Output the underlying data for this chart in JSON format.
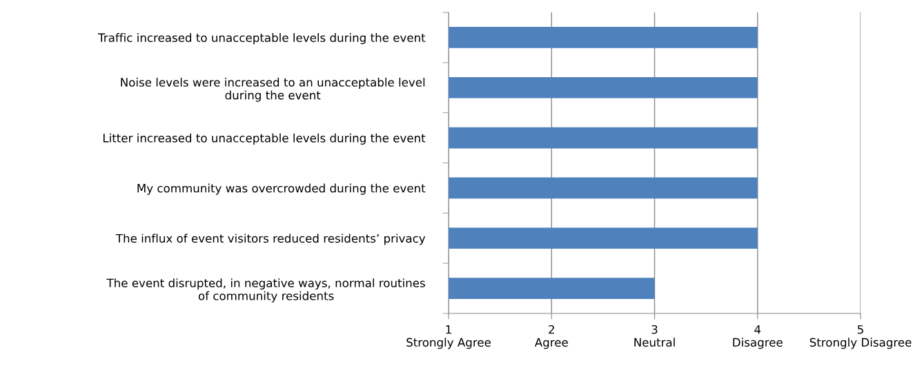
{
  "chart_data": {
    "type": "bar",
    "orientation": "horizontal",
    "categories": [
      "Traffic increased to unacceptable levels during the event",
      "Noise levels were increased to an unacceptable level\nduring the event",
      "Litter increased to unacceptable levels during the event",
      "My community was overcrowded during the event",
      "The influx of event visitors reduced residents’ privacy",
      "The event disrupted, in negative ways, normal routines\nof community residents"
    ],
    "values": [
      4,
      4,
      4,
      4,
      4,
      3
    ],
    "color": "#4f81bd",
    "xlim": [
      1,
      5
    ],
    "xticks": [
      {
        "value": 1,
        "label": "1\nStrongly Agree"
      },
      {
        "value": 2,
        "label": "2\nAgree"
      },
      {
        "value": 3,
        "label": "3\nNeutral"
      },
      {
        "value": 4,
        "label": "4\nDisagree"
      },
      {
        "value": 5,
        "label": "5\nStrongly Disagree"
      }
    ],
    "grid": "x",
    "legend": false
  }
}
